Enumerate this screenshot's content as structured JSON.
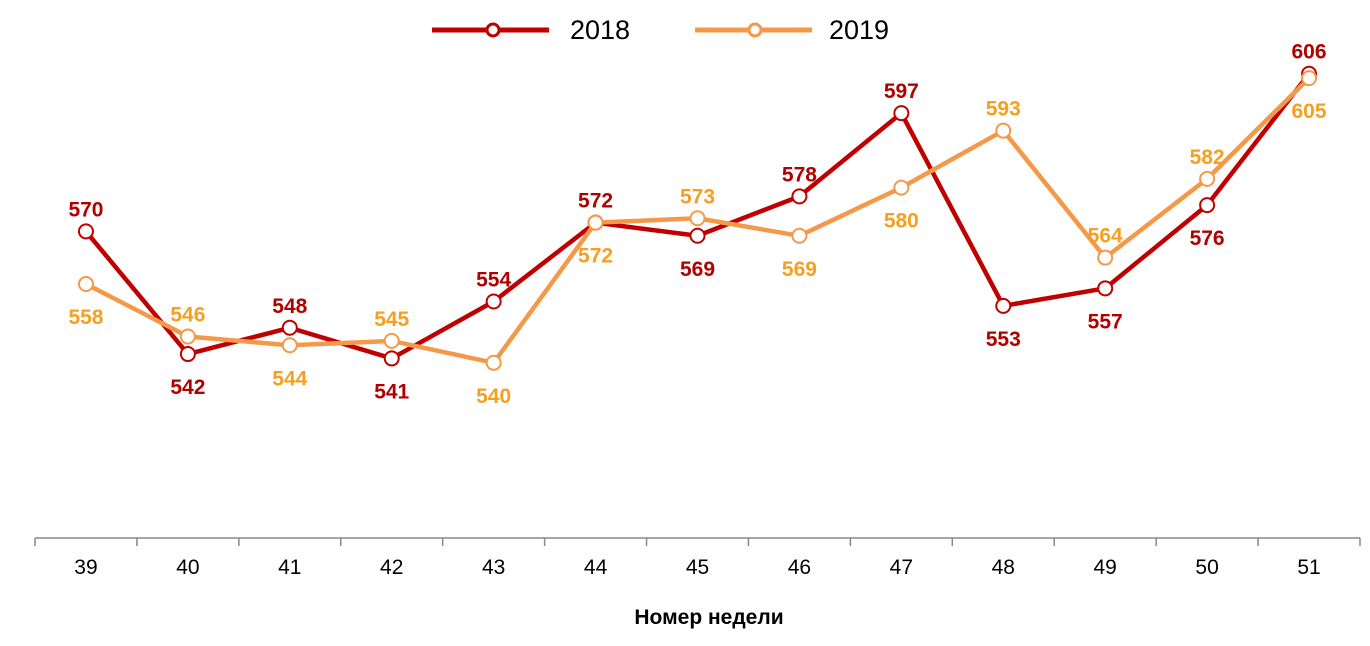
{
  "chart_data": {
    "type": "line",
    "title": "",
    "xlabel": "Номер недели",
    "ylabel": "",
    "categories": [
      "39",
      "40",
      "41",
      "42",
      "43",
      "44",
      "45",
      "46",
      "47",
      "48",
      "49",
      "50",
      "51"
    ],
    "ylim": [
      500,
      615
    ],
    "grid": false,
    "legend_position": "top",
    "series": [
      {
        "name": "2018",
        "color": "#C00000",
        "label_color": "#B00000",
        "values": [
          570,
          542,
          548,
          541,
          554,
          572,
          569,
          578,
          597,
          553,
          557,
          576,
          606
        ]
      },
      {
        "name": "2019",
        "color": "#F4994A",
        "label_color": "#F5A020",
        "values": [
          558,
          546,
          544,
          545,
          540,
          572,
          573,
          569,
          580,
          593,
          564,
          582,
          605
        ]
      }
    ]
  }
}
